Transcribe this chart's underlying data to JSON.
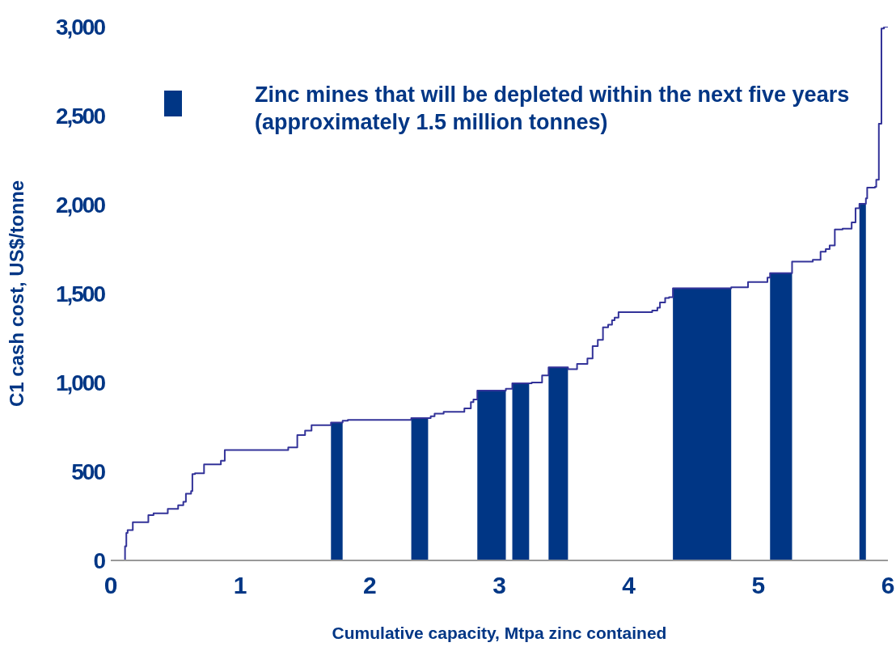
{
  "chart_data": {
    "type": "step",
    "xlabel": "Cumulative capacity, Mtpa zinc contained",
    "ylabel": "C1 cash cost, US$/tonne",
    "xlim": [
      0,
      6
    ],
    "xticks": [
      0,
      1,
      2,
      3,
      4,
      5,
      6
    ],
    "ylim": [
      0,
      3000
    ],
    "yticks": [
      0,
      {
        "value": 500,
        "label": "500"
      },
      {
        "value": 1000,
        "label": "1,000"
      },
      {
        "value": 1500,
        "label": "1,500"
      },
      {
        "value": 2000,
        "label": "2,000"
      },
      {
        "value": 2500,
        "label": "2,500"
      },
      {
        "value": 3000,
        "label": "3,000"
      }
    ],
    "legend": "top",
    "series": [
      {
        "color": "#333399",
        "x": [
          0.08,
          0.11,
          0.12,
          0.13,
          0.17,
          0.29,
          0.33,
          0.44,
          0.52,
          0.56,
          0.58,
          0.62,
          0.63,
          0.65,
          0.72,
          0.85,
          0.88,
          1.37,
          1.44,
          1.5,
          1.55,
          1.7,
          1.79,
          1.83,
          2.32,
          2.47,
          2.5,
          2.57,
          2.73,
          2.78,
          2.8,
          2.83,
          3.05,
          3.1,
          3.25,
          3.33,
          3.38,
          3.53,
          3.6,
          3.68,
          3.72,
          3.76,
          3.8,
          3.84,
          3.87,
          3.89,
          3.92,
          4.18,
          4.22,
          4.24,
          4.28,
          4.31,
          4.34,
          4.79,
          4.92,
          5.07,
          5.09,
          5.26,
          5.42,
          5.48,
          5.52,
          5.55,
          5.59,
          5.65,
          5.72,
          5.75,
          5.78,
          5.83,
          5.84,
          5.9,
          5.91,
          5.93,
          5.95,
          5.97,
          6
        ],
        "values": [
          0,
          80,
          155,
          170,
          215,
          255,
          265,
          290,
          310,
          330,
          375,
          390,
          485,
          490,
          540,
          560,
          620,
          635,
          705,
          730,
          760,
          775,
          785,
          790,
          800,
          810,
          825,
          835,
          855,
          890,
          905,
          955,
          965,
          995,
          1000,
          1040,
          1085,
          1075,
          1105,
          1135,
          1205,
          1240,
          1310,
          1325,
          1350,
          1365,
          1395,
          1405,
          1420,
          1450,
          1475,
          1480,
          1530,
          1535,
          1565,
          1590,
          1615,
          1680,
          1690,
          1735,
          1750,
          1770,
          1860,
          1865,
          1900,
          1980,
          2005,
          2035,
          2095,
          2100,
          2140,
          2455,
          2990,
          3000,
          3000
        ]
      },
      {
        "type": "area",
        "name": "Zinc mines that will be depleted within the next five years (approximately 1.5 million tonnes)",
        "color": "#003685",
        "x": [
          1.7,
          1.79
        ],
        "values": [
          775,
          775
        ]
      },
      {
        "type": "area",
        "color": "#003685",
        "x": [
          2.32,
          2.45
        ],
        "values": [
          800,
          800
        ]
      },
      {
        "type": "area",
        "color": "#003685",
        "x": [
          2.83,
          3.05
        ],
        "values": [
          955,
          955
        ]
      },
      {
        "type": "area",
        "color": "#003685",
        "x": [
          3.1,
          3.23
        ],
        "values": [
          995,
          995
        ]
      },
      {
        "type": "area",
        "color": "#003685",
        "x": [
          3.38,
          3.53
        ],
        "values": [
          1085,
          1085
        ]
      },
      {
        "type": "area",
        "color": "#003685",
        "x": [
          4.34,
          4.79
        ],
        "values": [
          1530,
          1530
        ]
      },
      {
        "type": "area",
        "color": "#003685",
        "x": [
          5.09,
          5.26
        ],
        "values": [
          1615,
          1615
        ]
      },
      {
        "type": "area",
        "color": "#003685",
        "x": [
          5.78,
          5.83
        ],
        "values": [
          2005,
          2005
        ]
      }
    ]
  }
}
